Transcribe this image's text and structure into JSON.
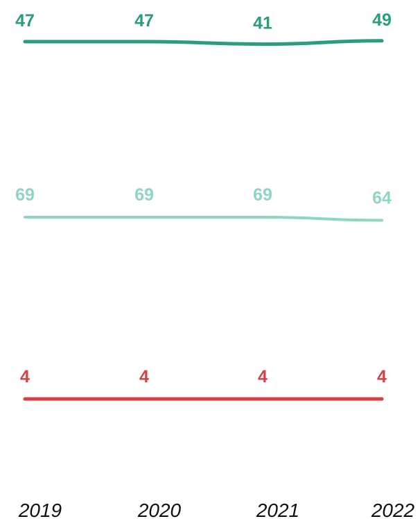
{
  "chart_data": {
    "type": "line",
    "categories": [
      "2019",
      "2020",
      "2021",
      "2022"
    ],
    "series": [
      {
        "values": [
          47,
          47,
          41,
          49
        ],
        "color": "#2a9d7f"
      },
      {
        "values": [
          69,
          69,
          69,
          64
        ],
        "color": "#8fd5c4"
      },
      {
        "values": [
          4,
          4,
          4,
          4
        ],
        "color": "#d94046"
      }
    ],
    "xlabel": "",
    "ylabel": "",
    "grid": false,
    "legend": "none",
    "y_axis_visible": false
  }
}
